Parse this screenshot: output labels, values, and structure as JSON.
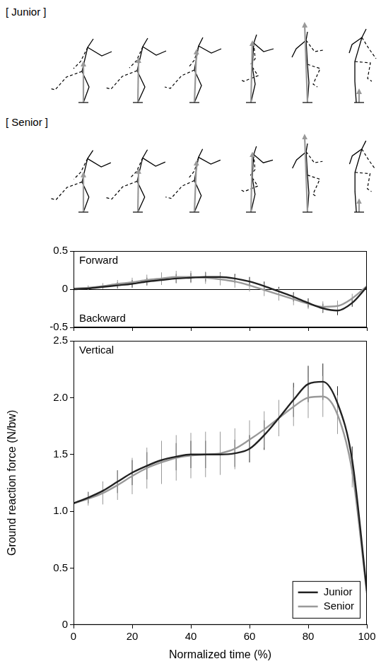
{
  "figure": {
    "labels": [
      "[ Junior ]",
      "[ Senior ]"
    ]
  },
  "chart_data": [
    {
      "type": "line",
      "annotations": [
        "Forward",
        "Backward"
      ],
      "x": [
        0,
        5,
        10,
        15,
        20,
        25,
        30,
        35,
        40,
        45,
        50,
        55,
        60,
        65,
        70,
        75,
        80,
        85,
        90,
        95,
        100
      ],
      "series": [
        {
          "name": "Junior",
          "color": "#222222",
          "values": [
            0.0,
            0.01,
            0.03,
            0.05,
            0.07,
            0.1,
            0.12,
            0.14,
            0.15,
            0.16,
            0.16,
            0.14,
            0.1,
            0.04,
            -0.03,
            -0.1,
            -0.18,
            -0.25,
            -0.28,
            -0.18,
            0.03
          ],
          "error": [
            0.01,
            0.02,
            0.03,
            0.04,
            0.05,
            0.05,
            0.06,
            0.06,
            0.06,
            0.06,
            0.06,
            0.06,
            0.06,
            0.06,
            0.06,
            0.06,
            0.06,
            0.06,
            0.06,
            0.05,
            0.03
          ]
        },
        {
          "name": "Senior",
          "color": "#999999",
          "values": [
            0.01,
            0.02,
            0.04,
            0.07,
            0.09,
            0.12,
            0.14,
            0.16,
            0.16,
            0.15,
            0.13,
            0.1,
            0.05,
            -0.01,
            -0.07,
            -0.13,
            -0.19,
            -0.23,
            -0.22,
            -0.12,
            0.04
          ],
          "error": [
            0.01,
            0.03,
            0.04,
            0.05,
            0.06,
            0.07,
            0.08,
            0.08,
            0.08,
            0.08,
            0.08,
            0.08,
            0.08,
            0.08,
            0.08,
            0.08,
            0.07,
            0.07,
            0.07,
            0.06,
            0.03
          ]
        }
      ],
      "xlim": [
        0,
        100
      ],
      "xticks": [
        0,
        20,
        40,
        60,
        80,
        100
      ],
      "ylim": [
        -0.5,
        0.5
      ],
      "yticks": [
        -0.5,
        0,
        0.5
      ],
      "tick_labels": "y"
    },
    {
      "type": "line",
      "annotations": [
        "Vertical"
      ],
      "xlabel": "Normalized time (%)",
      "ylabel": "Ground reaction force (N/bw)",
      "x": [
        0,
        5,
        10,
        15,
        20,
        25,
        30,
        35,
        40,
        45,
        50,
        55,
        60,
        65,
        70,
        75,
        80,
        85,
        90,
        95,
        100
      ],
      "series": [
        {
          "name": "Junior",
          "color": "#222222",
          "values": [
            1.07,
            1.12,
            1.18,
            1.26,
            1.34,
            1.4,
            1.45,
            1.48,
            1.5,
            1.5,
            1.5,
            1.51,
            1.55,
            1.67,
            1.82,
            1.98,
            2.12,
            2.14,
            1.95,
            1.45,
            0.3
          ],
          "error": [
            0.02,
            0.05,
            0.08,
            0.1,
            0.11,
            0.12,
            0.12,
            0.12,
            0.12,
            0.12,
            0.12,
            0.12,
            0.12,
            0.13,
            0.14,
            0.15,
            0.16,
            0.16,
            0.15,
            0.12,
            0.04
          ]
        },
        {
          "name": "Senior",
          "color": "#999999",
          "values": [
            1.07,
            1.11,
            1.16,
            1.23,
            1.31,
            1.38,
            1.43,
            1.47,
            1.49,
            1.5,
            1.51,
            1.55,
            1.63,
            1.72,
            1.82,
            1.92,
            2.0,
            2.01,
            1.85,
            1.35,
            0.28
          ],
          "error": [
            0.02,
            0.06,
            0.1,
            0.13,
            0.16,
            0.18,
            0.19,
            0.2,
            0.2,
            0.2,
            0.19,
            0.18,
            0.17,
            0.16,
            0.16,
            0.17,
            0.18,
            0.18,
            0.17,
            0.14,
            0.05
          ]
        }
      ],
      "xlim": [
        0,
        100
      ],
      "xticks": [
        0,
        20,
        40,
        60,
        80,
        100
      ],
      "ylim": [
        0,
        2.5
      ],
      "yticks": [
        0,
        0.5,
        {
          "value": 1,
          "label": "1.0"
        },
        1.5,
        {
          "value": 2,
          "label": "2.0"
        },
        2.5
      ],
      "legend": "lower right"
    }
  ]
}
